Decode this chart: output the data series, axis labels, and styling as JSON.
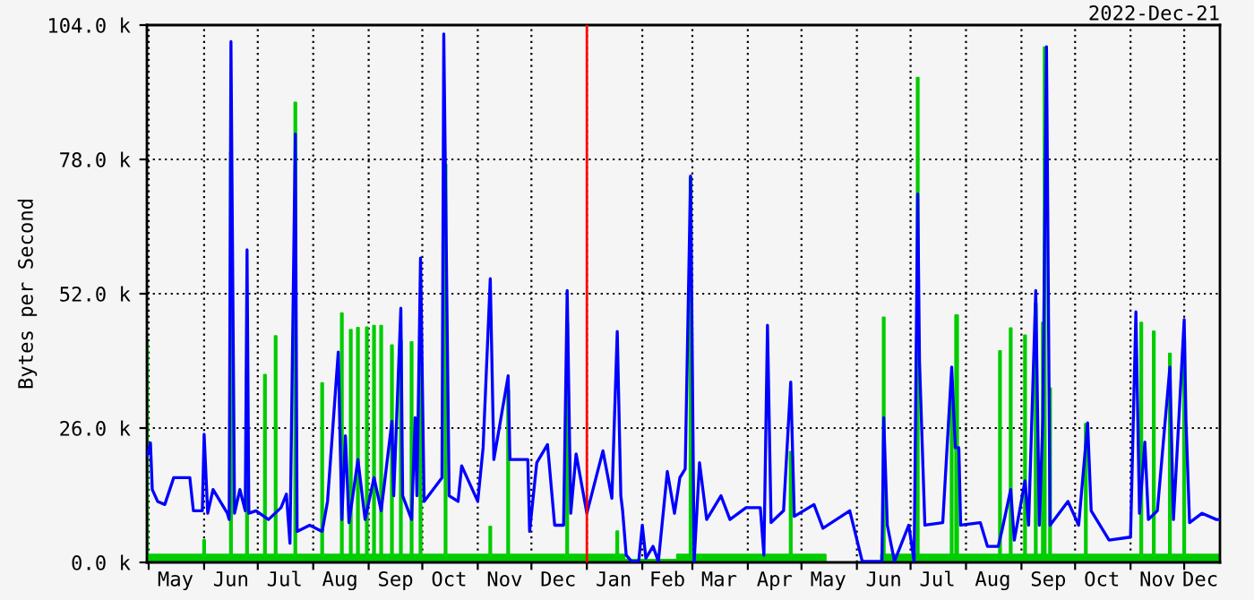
{
  "chart_data": {
    "type": "area",
    "title": "2022-Dec-21",
    "ylabel": "Bytes per Second",
    "xlim": [
      "2021-04-30",
      "2022-12-21"
    ],
    "ylim": [
      0,
      104000
    ],
    "yticks": [
      {
        "value": 0,
        "label": "0.0 k"
      },
      {
        "value": 26000,
        "label": "26.0 k"
      },
      {
        "value": 52000,
        "label": "52.0 k"
      },
      {
        "value": 78000,
        "label": "78.0 k"
      },
      {
        "value": 104000,
        "label": "104.0 k"
      }
    ],
    "xticks": [
      {
        "value": "2021-05-01",
        "label": null
      },
      {
        "value": "2021-06-01",
        "label": null
      },
      {
        "value": "2021-07-01",
        "label": null
      },
      {
        "value": "2021-08-01",
        "label": null
      },
      {
        "value": "2021-09-01",
        "label": null
      },
      {
        "value": "2021-10-01",
        "label": null
      },
      {
        "value": "2021-11-01",
        "label": null
      },
      {
        "value": "2021-12-01",
        "label": null
      },
      {
        "value": "2022-01-01",
        "label": null
      },
      {
        "value": "2022-02-01",
        "label": null
      },
      {
        "value": "2022-03-01",
        "label": null
      },
      {
        "value": "2022-04-01",
        "label": null
      },
      {
        "value": "2022-05-01",
        "label": null
      },
      {
        "value": "2022-06-01",
        "label": null
      },
      {
        "value": "2022-07-01",
        "label": null
      },
      {
        "value": "2022-08-01",
        "label": null
      },
      {
        "value": "2022-09-01",
        "label": null
      },
      {
        "value": "2022-10-01",
        "label": null
      },
      {
        "value": "2022-11-01",
        "label": null
      },
      {
        "value": "2022-12-01",
        "label": null
      },
      {
        "value": "2021-05-16",
        "label": "May"
      },
      {
        "value": "2021-06-16",
        "label": "Jun"
      },
      {
        "value": "2021-07-16",
        "label": "Jul"
      },
      {
        "value": "2021-08-16",
        "label": "Aug"
      },
      {
        "value": "2021-09-16",
        "label": "Sep"
      },
      {
        "value": "2021-10-16",
        "label": "Oct"
      },
      {
        "value": "2021-11-16",
        "label": "Nov"
      },
      {
        "value": "2021-12-16",
        "label": "Dec"
      },
      {
        "value": "2022-01-16",
        "label": "Jan"
      },
      {
        "value": "2022-02-15",
        "label": "Feb"
      },
      {
        "value": "2022-03-16",
        "label": "Mar"
      },
      {
        "value": "2022-04-16",
        "label": "Apr"
      },
      {
        "value": "2022-05-16",
        "label": "May"
      },
      {
        "value": "2022-06-16",
        "label": "Jun"
      },
      {
        "value": "2022-07-16",
        "label": "Jul"
      },
      {
        "value": "2022-08-16",
        "label": "Aug"
      },
      {
        "value": "2022-09-16",
        "label": "Sep"
      },
      {
        "value": "2022-10-16",
        "label": "Oct"
      },
      {
        "value": "2022-11-16",
        "label": "Nov"
      },
      {
        "value": "2022-12-10",
        "label": "Dec"
      }
    ],
    "grid": true,
    "ref_lines": [
      {
        "axis": "x",
        "value": "2022-01-01",
        "color": "#ff0000"
      }
    ],
    "series": [
      {
        "color": "#00cc00",
        "x": [
          "2021-04-30",
          "2021-05-01",
          "2021-05-31",
          "2021-06-01",
          "2021-06-02",
          "2021-06-15",
          "2021-06-16",
          "2021-06-17",
          "2021-06-24",
          "2021-06-25",
          "2021-06-26",
          "2021-07-04",
          "2021-07-05",
          "2021-07-06",
          "2021-07-10",
          "2021-07-11",
          "2021-07-12",
          "2021-07-21",
          "2021-07-22",
          "2021-07-23",
          "2021-08-05",
          "2021-08-06",
          "2021-08-07",
          "2021-08-16",
          "2021-08-17",
          "2021-08-18",
          "2021-08-21",
          "2021-08-22",
          "2021-08-23",
          "2021-08-25",
          "2021-08-26",
          "2021-08-27",
          "2021-08-30",
          "2021-08-31",
          "2021-09-01",
          "2021-09-03",
          "2021-09-04",
          "2021-09-05",
          "2021-09-07",
          "2021-09-08",
          "2021-09-09",
          "2021-09-13",
          "2021-09-14",
          "2021-09-15",
          "2021-09-18",
          "2021-09-19",
          "2021-09-20",
          "2021-09-24",
          "2021-09-25",
          "2021-09-26",
          "2021-09-29",
          "2021-09-30",
          "2021-10-01",
          "2021-10-13",
          "2021-10-14",
          "2021-10-15",
          "2021-11-07",
          "2021-11-08",
          "2021-11-09",
          "2021-11-17",
          "2021-11-18",
          "2021-11-19",
          "2021-12-20",
          "2021-12-21",
          "2021-12-22",
          "2022-01-17",
          "2022-01-18",
          "2022-01-19",
          "2022-01-25",
          "2022-02-14",
          "2022-02-27",
          "2022-02-28",
          "2022-03-01",
          "2022-04-24",
          "2022-04-25",
          "2022-04-26",
          "2022-06-02",
          "2022-06-14",
          "2022-06-15",
          "2022-06-16",
          "2022-06-17",
          "2022-07-04",
          "2022-07-05",
          "2022-07-06",
          "2022-07-23",
          "2022-07-24",
          "2022-07-25",
          "2022-07-27",
          "2022-07-28",
          "2022-08-19",
          "2022-08-20",
          "2022-08-21",
          "2022-08-25",
          "2022-08-26",
          "2022-08-27",
          "2022-09-02",
          "2022-09-03",
          "2022-09-04",
          "2022-09-08",
          "2022-09-09",
          "2022-09-10",
          "2022-09-12",
          "2022-09-13",
          "2022-09-14",
          "2022-09-15",
          "2022-09-16",
          "2022-09-17",
          "2022-09-18",
          "2022-10-06",
          "2022-10-07",
          "2022-10-08",
          "2022-11-06",
          "2022-11-07",
          "2022-11-08",
          "2022-11-13",
          "2022-11-14",
          "2022-11-15",
          "2022-11-22",
          "2022-11-23",
          "2022-11-24",
          "2022-11-30",
          "2022-12-01",
          "2022-12-02",
          "2022-12-21"
        ],
        "values": [
          42600,
          1500,
          1500,
          4300,
          1500,
          1500,
          79400,
          1500,
          1500,
          37400,
          1500,
          1500,
          36300,
          1500,
          1500,
          43800,
          1500,
          1500,
          89000,
          1500,
          1500,
          34700,
          1500,
          1500,
          48200,
          1500,
          1500,
          45000,
          1500,
          1500,
          45400,
          1500,
          1500,
          45500,
          1500,
          1500,
          45800,
          1500,
          1500,
          45800,
          1500,
          1500,
          42000,
          1500,
          1500,
          43000,
          1500,
          1500,
          42600,
          1500,
          1500,
          45000,
          1500,
          1500,
          77000,
          1500,
          1500,
          6900,
          1500,
          1500,
          33300,
          1500,
          1500,
          46400,
          1500,
          1500,
          6000,
          1500,
          500,
          500,
          1500,
          74500,
          1500,
          1500,
          21400,
          1500,
          0,
          0,
          1500,
          47400,
          1500,
          1500,
          93800,
          1500,
          1500,
          32000,
          1500,
          47800,
          1500,
          1500,
          40900,
          1500,
          1500,
          45300,
          1500,
          1500,
          43900,
          1500,
          1500,
          50100,
          1500,
          1500,
          46400,
          99700,
          1500,
          1500,
          33700,
          1500,
          1500,
          26800,
          1500,
          1500,
          46400,
          1500,
          1500,
          44700,
          1500,
          1500,
          40400,
          1500,
          1500,
          43200,
          1500,
          1500
        ]
      },
      {
        "type": "line",
        "color": "#0000ff",
        "x": [
          "2021-04-30",
          "2021-05-02",
          "2021-05-03",
          "2021-05-06",
          "2021-05-10",
          "2021-05-15",
          "2021-05-24",
          "2021-05-26",
          "2021-05-31",
          "2021-06-01",
          "2021-06-03",
          "2021-06-06",
          "2021-06-14",
          "2021-06-15",
          "2021-06-16",
          "2021-06-18",
          "2021-06-21",
          "2021-06-24",
          "2021-06-25",
          "2021-06-26",
          "2021-06-30",
          "2021-07-07",
          "2021-07-14",
          "2021-07-17",
          "2021-07-19",
          "2021-07-22",
          "2021-07-23",
          "2021-07-30",
          "2021-08-06",
          "2021-08-09",
          "2021-08-15",
          "2021-08-17",
          "2021-08-19",
          "2021-08-21",
          "2021-08-26",
          "2021-08-30",
          "2021-09-04",
          "2021-09-08",
          "2021-09-14",
          "2021-09-15",
          "2021-09-19",
          "2021-09-20",
          "2021-09-25",
          "2021-09-27",
          "2021-09-28",
          "2021-09-30",
          "2021-10-02",
          "2021-10-12",
          "2021-10-13",
          "2021-10-16",
          "2021-10-21",
          "2021-10-23",
          "2021-11-01",
          "2021-11-04",
          "2021-11-08",
          "2021-11-10",
          "2021-11-18",
          "2021-11-19",
          "2021-11-29",
          "2021-11-30",
          "2021-12-04",
          "2021-12-10",
          "2021-12-14",
          "2021-12-19",
          "2021-12-21",
          "2021-12-23",
          "2021-12-26",
          "2022-01-01",
          "2022-01-10",
          "2022-01-15",
          "2022-01-18",
          "2022-01-20",
          "2022-01-21",
          "2022-01-23",
          "2022-01-26",
          "2022-01-30",
          "2022-02-01",
          "2022-02-03",
          "2022-02-07",
          "2022-02-10",
          "2022-02-15",
          "2022-02-19",
          "2022-02-22",
          "2022-02-25",
          "2022-02-28",
          "2022-03-02",
          "2022-03-05",
          "2022-03-09",
          "2022-03-17",
          "2022-03-22",
          "2022-03-31",
          "2022-04-08",
          "2022-04-10",
          "2022-04-12",
          "2022-04-14",
          "2022-04-21",
          "2022-04-25",
          "2022-04-27",
          "2022-05-08",
          "2022-05-13",
          "2022-05-28",
          "2022-06-04",
          "2022-06-15",
          "2022-06-16",
          "2022-06-18",
          "2022-06-22",
          "2022-06-30",
          "2022-07-03",
          "2022-07-05",
          "2022-07-06",
          "2022-07-09",
          "2022-07-19",
          "2022-07-24",
          "2022-07-26",
          "2022-07-28",
          "2022-07-29",
          "2022-08-09",
          "2022-08-13",
          "2022-08-19",
          "2022-08-21",
          "2022-08-26",
          "2022-08-28",
          "2022-09-03",
          "2022-09-05",
          "2022-09-09",
          "2022-09-11",
          "2022-09-13",
          "2022-09-15",
          "2022-09-16",
          "2022-09-17",
          "2022-09-27",
          "2022-10-03",
          "2022-10-08",
          "2022-10-10",
          "2022-10-20",
          "2022-11-01",
          "2022-11-04",
          "2022-11-06",
          "2022-11-09",
          "2022-11-11",
          "2022-11-16",
          "2022-11-23",
          "2022-11-25",
          "2022-12-01",
          "2022-12-02",
          "2022-12-04",
          "2022-12-11",
          "2022-12-19",
          "2022-12-21"
        ],
        "values": [
          20500,
          23100,
          14100,
          11800,
          11200,
          16400,
          16400,
          10000,
          10000,
          24800,
          9500,
          14100,
          9500,
          8300,
          100800,
          9500,
          14100,
          10000,
          60500,
          9500,
          10000,
          8300,
          10600,
          13200,
          3700,
          82900,
          6000,
          7200,
          6000,
          11800,
          40700,
          8300,
          24500,
          7700,
          19900,
          8300,
          16400,
          10000,
          27300,
          12900,
          49200,
          12900,
          8300,
          28000,
          12900,
          58900,
          11800,
          16400,
          102300,
          12900,
          11800,
          18700,
          11800,
          22200,
          54900,
          19900,
          36100,
          19900,
          19900,
          6000,
          19300,
          22800,
          7200,
          7200,
          52600,
          9500,
          21000,
          9500,
          21600,
          12400,
          44700,
          12900,
          10000,
          1400,
          200,
          200,
          7200,
          800,
          3100,
          200,
          17600,
          9500,
          16400,
          18100,
          74800,
          200,
          19300,
          8300,
          12900,
          8300,
          10600,
          10600,
          1400,
          45900,
          7700,
          10000,
          34900,
          8900,
          11200,
          6600,
          10000,
          200,
          200,
          28000,
          7200,
          200,
          7200,
          200,
          71300,
          38900,
          7200,
          7700,
          37800,
          22200,
          22200,
          7200,
          7700,
          3100,
          3100,
          6000,
          14100,
          4300,
          15800,
          7200,
          52600,
          7200,
          28000,
          99800,
          54000,
          7200,
          11800,
          7200,
          27000,
          10000,
          4300,
          4900,
          48500,
          9500,
          23300,
          8300,
          10000,
          37800,
          8300,
          47000,
          27400,
          7700,
          9500,
          8300,
          8300
        ]
      }
    ]
  }
}
